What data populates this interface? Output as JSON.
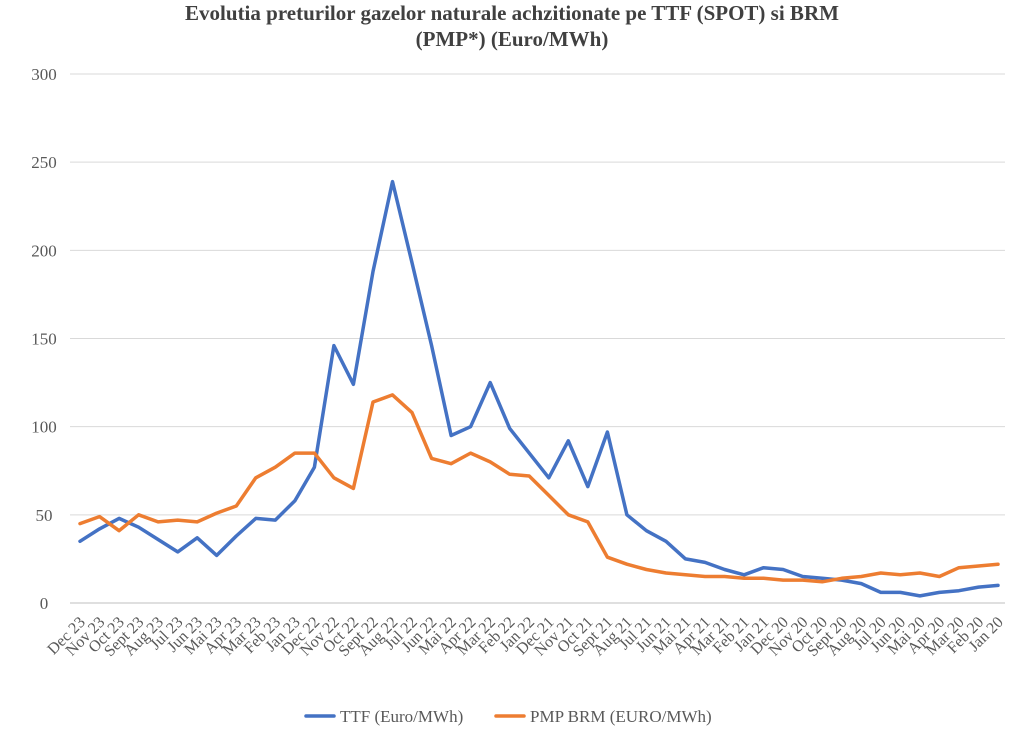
{
  "chart_data": {
    "type": "line",
    "title_line1": "Evolutia preturilor gazelor naturale achzitionate pe TTF (SPOT) si BRM",
    "title_line2": "(PMP*) (Euro/MWh)",
    "xlabel": "",
    "ylabel": "",
    "ylim": [
      0,
      300
    ],
    "yticks": [
      0,
      50,
      100,
      150,
      200,
      250,
      300
    ],
    "grid": true,
    "legend_position": "bottom",
    "categories": [
      "Dec 23",
      "Nov 23",
      "Oct 23",
      "Sept 23",
      "Aug 23",
      "Jul 23",
      "Jun 23",
      "Mai 23",
      "Apr 23",
      "Mar 23",
      "Feb 23",
      "Jan 23",
      "Dec 22",
      "Nov 22",
      "Oct 22",
      "Sept 22",
      "Aug 22",
      "Jul 22",
      "Jun 22",
      "Mai 22",
      "Apr 22",
      "Mar 22",
      "Feb 22",
      "Jan 22",
      "Dec 21",
      "Nov 21",
      "Oct 21",
      "Sept 21",
      "Aug 21",
      "Jul 21",
      "Jun 21",
      "Mai 21",
      "Apr 21",
      "Mar 21",
      "Feb 21",
      "Jan 21",
      "Dec 20",
      "Nov 20",
      "Oct 20",
      "Sept 20",
      "Aug 20",
      "Jul 20",
      "Jun 20",
      "Mai 20",
      "Apr 20",
      "Mar 20",
      "Feb 20",
      "Jan 20"
    ],
    "series": [
      {
        "name": "TTF (Euro/MWh)",
        "color": "#4472C4",
        "values": [
          35,
          42,
          48,
          43,
          36,
          29,
          37,
          27,
          38,
          48,
          47,
          58,
          77,
          146,
          124,
          188,
          239,
          193,
          146,
          95,
          100,
          125,
          99,
          85,
          71,
          92,
          66,
          97,
          50,
          41,
          35,
          25,
          23,
          19,
          16,
          20,
          19,
          15,
          14,
          13,
          11,
          6,
          6,
          4,
          6,
          7,
          9,
          10
        ]
      },
      {
        "name": "PMP BRM (EURO/MWh)",
        "color": "#ED7D31",
        "values": [
          45,
          49,
          41,
          50,
          46,
          47,
          46,
          51,
          55,
          71,
          77,
          85,
          85,
          71,
          65,
          114,
          118,
          108,
          82,
          79,
          85,
          80,
          73,
          72,
          61,
          50,
          46,
          26,
          22,
          19,
          17,
          16,
          15,
          15,
          14,
          14,
          13,
          13,
          12,
          14,
          15,
          17,
          16,
          17,
          15,
          20,
          21,
          22
        ]
      }
    ]
  }
}
